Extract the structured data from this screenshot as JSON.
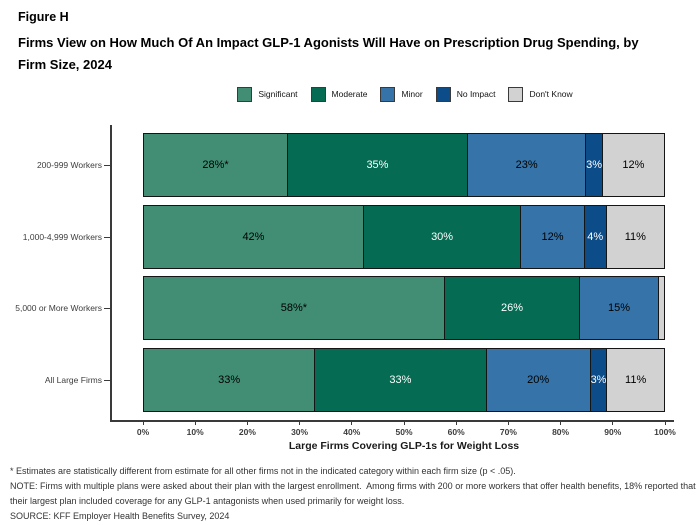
{
  "figure": {
    "label": "Figure H",
    "title": "Firms View on How Much Of An Impact GLP-1 Agonists Will Have on Prescription Drug Spending, by Firm Size, 2024"
  },
  "legend": {
    "items": [
      {
        "label": "Significant",
        "color": "#418e74"
      },
      {
        "label": "Moderate",
        "color": "#056b53"
      },
      {
        "label": "Minor",
        "color": "#3673a8"
      },
      {
        "label": "No Impact",
        "color": "#0c4c89"
      },
      {
        "label": "Don't Know",
        "color": "#d2d2d2"
      }
    ]
  },
  "chart_data": {
    "type": "bar",
    "orientation": "horizontal",
    "stacked": true,
    "title": "Firms View on How Much Of An Impact GLP-1 Agonists Will Have on Prescription Drug Spending, by Firm Size, 2024",
    "xlabel": "Large Firms Covering GLP-1s for Weight Loss",
    "ylabel": "",
    "xlim": [
      0,
      100
    ],
    "x_ticks": [
      "0%",
      "10%",
      "20%",
      "30%",
      "40%",
      "50%",
      "60%",
      "70%",
      "80%",
      "90%",
      "100%"
    ],
    "grid": false,
    "legend_position": "top",
    "categories": [
      "200-999 Workers",
      "1,000-4,999 Workers",
      "5,000 or More Workers",
      "All Large Firms"
    ],
    "series": [
      {
        "name": "Significant",
        "color": "#418e74",
        "label_color": "#000000",
        "values": [
          28,
          42,
          58,
          33
        ],
        "labels": [
          "28%*",
          "42%",
          "58%*",
          "33%"
        ]
      },
      {
        "name": "Moderate",
        "color": "#056b53",
        "label_color": "#ffffff",
        "values": [
          35,
          30,
          26,
          33
        ],
        "labels": [
          "35%",
          "30%",
          "26%",
          "33%"
        ]
      },
      {
        "name": "Minor",
        "color": "#3673a8",
        "label_color": "#000000",
        "values": [
          23,
          12,
          15,
          20
        ],
        "labels": [
          "23%",
          "12%",
          "15%",
          "20%"
        ]
      },
      {
        "name": "No Impact",
        "color": "#0c4c89",
        "label_color": "#ffffff",
        "values": [
          3,
          4,
          0,
          3
        ],
        "labels": [
          "3%",
          "4%",
          "",
          "3%"
        ]
      },
      {
        "name": "Don't Know",
        "color": "#d2d2d2",
        "label_color": "#000000",
        "values": [
          12,
          11,
          1,
          11
        ],
        "labels": [
          "12%",
          "11%",
          "",
          "11%"
        ]
      }
    ]
  },
  "footnotes": {
    "asterisk": "* Estimates are statistically different from estimate for all other firms not in the indicated category within each firm size (p < .05).",
    "note": "NOTE: Firms with multiple plans were asked about their plan with the largest enrollment.  Among firms with 200 or more workers that offer health benefits, 18% reported that their largest plan included coverage for any GLP-1 antagonists when used primarily for weight loss.",
    "source": "SOURCE: KFF Employer Health Benefits Survey, 2024"
  }
}
